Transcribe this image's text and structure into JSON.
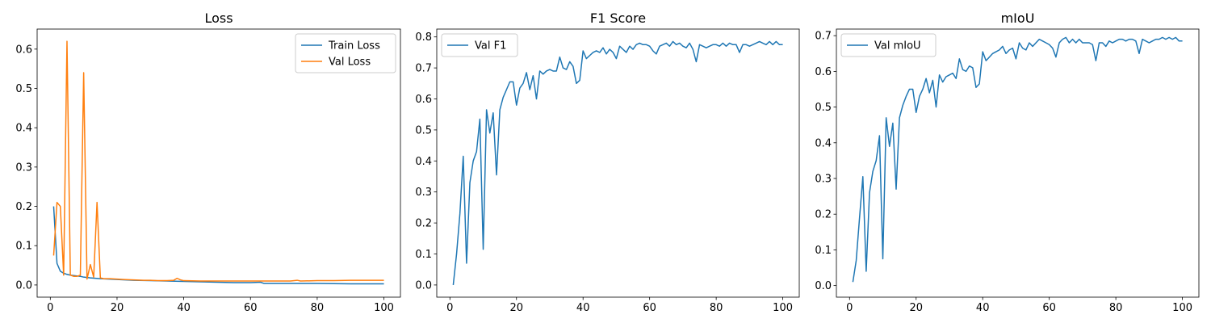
{
  "chart_data": [
    {
      "type": "line",
      "title": "Loss",
      "xlabel": "",
      "ylabel": "",
      "xlim": [
        -3.95,
        104.95
      ],
      "ylim": [
        -0.031,
        0.651
      ],
      "xticks": [
        0,
        20,
        40,
        60,
        80,
        100
      ],
      "yticks": [
        0.0,
        0.1,
        0.2,
        0.3,
        0.4,
        0.5,
        0.6
      ],
      "ytick_labels": [
        "0.0",
        "0.1",
        "0.2",
        "0.3",
        "0.4",
        "0.5",
        "0.6"
      ],
      "grid": false,
      "legend": "top-right",
      "series": [
        {
          "name": "Train Loss",
          "color": "#1f77b4",
          "x": [
            1,
            2,
            3,
            4,
            5,
            6,
            7,
            8,
            9,
            10,
            12,
            15,
            20,
            25,
            30,
            35,
            40,
            45,
            50,
            55,
            60,
            63,
            64,
            70,
            80,
            90,
            100
          ],
          "y": [
            0.2,
            0.055,
            0.035,
            0.03,
            0.027,
            0.025,
            0.024,
            0.023,
            0.022,
            0.02,
            0.018,
            0.016,
            0.014,
            0.012,
            0.011,
            0.01,
            0.009,
            0.008,
            0.007,
            0.006,
            0.006,
            0.007,
            0.004,
            0.004,
            0.004,
            0.003,
            0.003
          ]
        },
        {
          "name": "Val Loss",
          "color": "#ff7f0e",
          "x": [
            1,
            2,
            3,
            4,
            5,
            6,
            7,
            8,
            9,
            10,
            11,
            12,
            13,
            14,
            15,
            16,
            18,
            20,
            22,
            25,
            28,
            30,
            32,
            35,
            37,
            38,
            39,
            40,
            45,
            50,
            55,
            60,
            65,
            70,
            72,
            74,
            75,
            80,
            85,
            90,
            95,
            100
          ],
          "y": [
            0.075,
            0.21,
            0.2,
            0.025,
            0.62,
            0.025,
            0.022,
            0.022,
            0.025,
            0.54,
            0.015,
            0.052,
            0.02,
            0.21,
            0.018,
            0.016,
            0.016,
            0.015,
            0.014,
            0.013,
            0.012,
            0.012,
            0.011,
            0.011,
            0.012,
            0.017,
            0.013,
            0.011,
            0.01,
            0.01,
            0.01,
            0.01,
            0.01,
            0.01,
            0.01,
            0.012,
            0.01,
            0.011,
            0.011,
            0.012,
            0.012,
            0.012
          ]
        }
      ]
    },
    {
      "type": "line",
      "title": "F1 Score",
      "xlabel": "",
      "ylabel": "",
      "xlim": [
        -3.95,
        104.95
      ],
      "ylim": [
        -0.0393,
        0.8253
      ],
      "xticks": [
        0,
        20,
        40,
        60,
        80,
        100
      ],
      "yticks": [
        0.0,
        0.1,
        0.2,
        0.3,
        0.4,
        0.5,
        0.6,
        0.7,
        0.8
      ],
      "ytick_labels": [
        "0.0",
        "0.1",
        "0.2",
        "0.3",
        "0.4",
        "0.5",
        "0.6",
        "0.7",
        "0.8"
      ],
      "grid": false,
      "legend": "top-left",
      "series": [
        {
          "name": "Val F1",
          "color": "#1f77b4",
          "x": [
            1,
            2,
            3,
            4,
            5,
            6,
            7,
            8,
            9,
            10,
            11,
            12,
            13,
            14,
            15,
            16,
            17,
            18,
            19,
            20,
            21,
            22,
            23,
            24,
            25,
            26,
            27,
            28,
            29,
            30,
            31,
            32,
            33,
            34,
            35,
            36,
            37,
            38,
            39,
            40,
            41,
            42,
            43,
            44,
            45,
            46,
            47,
            48,
            49,
            50,
            51,
            52,
            53,
            54,
            55,
            56,
            57,
            58,
            59,
            60,
            61,
            62,
            63,
            64,
            65,
            66,
            67,
            68,
            69,
            70,
            71,
            72,
            73,
            74,
            75,
            76,
            77,
            78,
            79,
            80,
            81,
            82,
            83,
            84,
            85,
            86,
            87,
            88,
            89,
            90,
            91,
            92,
            93,
            94,
            95,
            96,
            97,
            98,
            99,
            100
          ],
          "y": [
            0.0,
            0.1,
            0.23,
            0.415,
            0.07,
            0.33,
            0.4,
            0.43,
            0.535,
            0.115,
            0.565,
            0.49,
            0.555,
            0.355,
            0.565,
            0.605,
            0.63,
            0.655,
            0.655,
            0.58,
            0.635,
            0.65,
            0.685,
            0.63,
            0.675,
            0.6,
            0.69,
            0.68,
            0.69,
            0.695,
            0.69,
            0.69,
            0.735,
            0.7,
            0.695,
            0.72,
            0.705,
            0.65,
            0.66,
            0.755,
            0.73,
            0.74,
            0.75,
            0.755,
            0.75,
            0.765,
            0.745,
            0.76,
            0.75,
            0.73,
            0.77,
            0.76,
            0.75,
            0.77,
            0.76,
            0.775,
            0.78,
            0.775,
            0.775,
            0.77,
            0.755,
            0.745,
            0.77,
            0.775,
            0.78,
            0.77,
            0.785,
            0.775,
            0.78,
            0.77,
            0.765,
            0.78,
            0.76,
            0.72,
            0.775,
            0.77,
            0.765,
            0.77,
            0.775,
            0.775,
            0.77,
            0.78,
            0.77,
            0.78,
            0.775,
            0.775,
            0.75,
            0.775,
            0.775,
            0.77,
            0.775,
            0.78,
            0.785,
            0.78,
            0.775,
            0.785,
            0.775,
            0.785,
            0.775,
            0.775
          ]
        }
      ]
    },
    {
      "type": "line",
      "title": "mIoU",
      "xlabel": "",
      "ylabel": "",
      "xlim": [
        -3.95,
        104.95
      ],
      "ylim": [
        -0.0325,
        0.7185
      ],
      "xticks": [
        0,
        20,
        40,
        60,
        80,
        100
      ],
      "yticks": [
        0.0,
        0.1,
        0.2,
        0.3,
        0.4,
        0.5,
        0.6,
        0.7
      ],
      "ytick_labels": [
        "0.0",
        "0.1",
        "0.2",
        "0.3",
        "0.4",
        "0.5",
        "0.6",
        "0.7"
      ],
      "grid": false,
      "legend": "top-left",
      "series": [
        {
          "name": "Val mIoU",
          "color": "#1f77b4",
          "x": [
            1,
            2,
            3,
            4,
            5,
            6,
            7,
            8,
            9,
            10,
            11,
            12,
            13,
            14,
            15,
            16,
            17,
            18,
            19,
            20,
            21,
            22,
            23,
            24,
            25,
            26,
            27,
            28,
            29,
            30,
            31,
            32,
            33,
            34,
            35,
            36,
            37,
            38,
            39,
            40,
            41,
            42,
            43,
            44,
            45,
            46,
            47,
            48,
            49,
            50,
            51,
            52,
            53,
            54,
            55,
            56,
            57,
            58,
            59,
            60,
            61,
            62,
            63,
            64,
            65,
            66,
            67,
            68,
            69,
            70,
            71,
            72,
            73,
            74,
            75,
            76,
            77,
            78,
            79,
            80,
            81,
            82,
            83,
            84,
            85,
            86,
            87,
            88,
            89,
            90,
            91,
            92,
            93,
            94,
            95,
            96,
            97,
            98,
            99,
            100
          ],
          "y": [
            0.01,
            0.07,
            0.19,
            0.305,
            0.04,
            0.26,
            0.32,
            0.35,
            0.42,
            0.075,
            0.47,
            0.39,
            0.455,
            0.27,
            0.47,
            0.505,
            0.53,
            0.55,
            0.55,
            0.485,
            0.53,
            0.55,
            0.58,
            0.54,
            0.575,
            0.5,
            0.59,
            0.57,
            0.585,
            0.59,
            0.595,
            0.58,
            0.635,
            0.605,
            0.6,
            0.615,
            0.61,
            0.555,
            0.565,
            0.655,
            0.63,
            0.64,
            0.65,
            0.655,
            0.66,
            0.67,
            0.65,
            0.66,
            0.665,
            0.635,
            0.68,
            0.665,
            0.66,
            0.68,
            0.67,
            0.68,
            0.69,
            0.685,
            0.68,
            0.675,
            0.665,
            0.64,
            0.68,
            0.69,
            0.695,
            0.68,
            0.69,
            0.68,
            0.69,
            0.68,
            0.68,
            0.68,
            0.675,
            0.63,
            0.68,
            0.68,
            0.67,
            0.685,
            0.68,
            0.685,
            0.69,
            0.69,
            0.685,
            0.69,
            0.69,
            0.685,
            0.65,
            0.69,
            0.685,
            0.68,
            0.685,
            0.69,
            0.69,
            0.695,
            0.69,
            0.695,
            0.69,
            0.695,
            0.685,
            0.685
          ]
        }
      ]
    }
  ]
}
